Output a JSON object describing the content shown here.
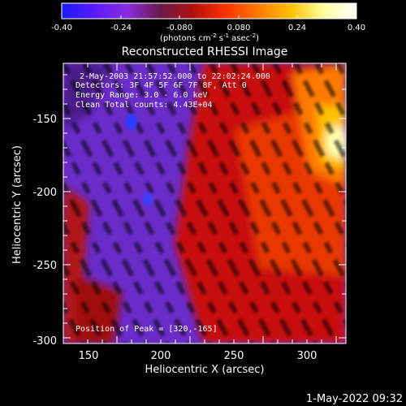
{
  "colorbar": {
    "ticks": [
      "-0.40",
      "-0.24",
      "-0.080",
      "0.080",
      "0.24",
      "0.40"
    ],
    "units_main": "(photons cm",
    "units_exp1": "-2",
    "units_mid1": " s",
    "units_exp2": "-1",
    "units_mid2": " asec",
    "units_exp3": "-2",
    "units_end": ")",
    "colors": [
      "#1a1aff",
      "#5a1aff",
      "#8a2be2",
      "#6a1a4a",
      "#b01010",
      "#ff3000",
      "#ff7a00",
      "#ffc000",
      "#ffffa0",
      "#ffffff"
    ]
  },
  "plot": {
    "title": "Reconstructed RHESSI Image",
    "info_lines": [
      " 2-May-2003 21:57:52.000 to 22:02:24.000",
      "Detectors: 3F 4F 5F 6F 7F 8F, Att 0",
      "Energy Range: 3.0 - 6.0 keV",
      "Clean     Total counts: 4.43E+04"
    ],
    "peak_label": "Position of Peak = [320,-165]",
    "x_axis_label": "Heliocentric X (arcsec)",
    "y_axis_label": "Heliocentric Y (arcsec)",
    "x_ticks": [
      "150",
      "200",
      "250",
      "300"
    ],
    "y_ticks": [
      "-150",
      "-200",
      "-250",
      "-300"
    ]
  },
  "footer": {
    "timestamp": "1-May-2022 09:32"
  }
}
